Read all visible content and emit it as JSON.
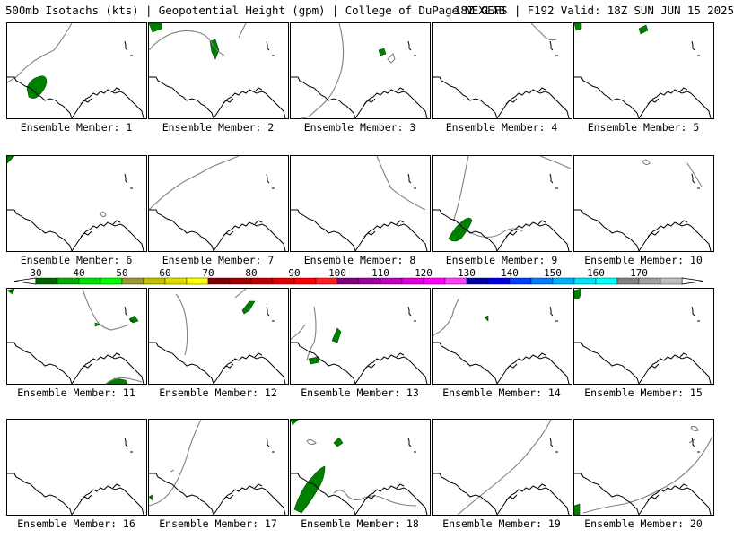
{
  "header": {
    "left_text": "500mb Isotachs (kts) | Geopotential Height (gpm) | College of DuPage NEXLAB",
    "right_text": "18Z GEFS | F192 Valid: 18Z SUN JUN 15 2025"
  },
  "colorbar": {
    "labels": [
      "30",
      "40",
      "50",
      "60",
      "70",
      "80",
      "90",
      "100",
      "110",
      "120",
      "130",
      "140",
      "150",
      "160",
      "170"
    ],
    "colors": [
      "#006400",
      "#00b000",
      "#00e000",
      "#00ff00",
      "#999933",
      "#c0c000",
      "#e0e000",
      "#ffff00",
      "#800000",
      "#a00000",
      "#c00000",
      "#e00000",
      "#ff0000",
      "#ff2020",
      "#800080",
      "#a000a0",
      "#c000c0",
      "#e000e0",
      "#ff00ff",
      "#ff40ff",
      "#0000a0",
      "#0000e0",
      "#0040ff",
      "#0080ff",
      "#00b0ff",
      "#00e0ff",
      "#00ffff",
      "#808080",
      "#a0a0a0",
      "#c0c0c0"
    ]
  },
  "members": [
    {
      "caption": "Ensemble Member: 1"
    },
    {
      "caption": "Ensemble Member: 2"
    },
    {
      "caption": "Ensemble Member: 3"
    },
    {
      "caption": "Ensemble Member: 4"
    },
    {
      "caption": "Ensemble Member: 5"
    },
    {
      "caption": "Ensemble Member: 6"
    },
    {
      "caption": "Ensemble Member: 7"
    },
    {
      "caption": "Ensemble Member: 8"
    },
    {
      "caption": "Ensemble Member: 9"
    },
    {
      "caption": "Ensemble Member: 10"
    },
    {
      "caption": "Ensemble Member: 11"
    },
    {
      "caption": "Ensemble Member: 12"
    },
    {
      "caption": "Ensemble Member: 13"
    },
    {
      "caption": "Ensemble Member: 14"
    },
    {
      "caption": "Ensemble Member: 15"
    },
    {
      "caption": "Ensemble Member: 16"
    },
    {
      "caption": "Ensemble Member: 17"
    },
    {
      "caption": "Ensemble Member: 18"
    },
    {
      "caption": "Ensemble Member: 19"
    },
    {
      "caption": "Ensemble Member: 20"
    }
  ]
}
